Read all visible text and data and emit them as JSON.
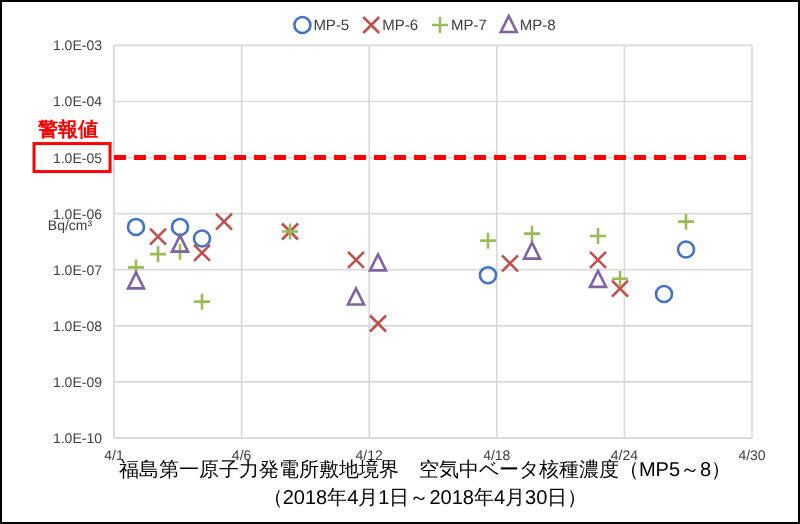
{
  "chart_data": {
    "type": "scatter",
    "title": "福島第一原子力発電所敷地境界　空気中ベータ核種濃度（MP5～8）",
    "subtitle": "（2018年4月1日～2018年4月30日）",
    "ylabel": "Bq/cm³",
    "log": "y",
    "grid": true,
    "legend": "top",
    "xlim": [
      "2018-04-01",
      "2018-04-30"
    ],
    "xticks": [
      {
        "value": "2018-04-01",
        "label": "4/1"
      },
      {
        "value": "2018-04-06T19:12",
        "label": "4/6"
      },
      {
        "value": "2018-04-12T14:24",
        "label": "4/12"
      },
      {
        "value": "2018-04-18T09:36",
        "label": "4/18"
      },
      {
        "value": "2018-04-24T04:48",
        "label": "4/24"
      },
      {
        "value": "2018-04-30",
        "label": "4/30"
      }
    ],
    "ylim": [
      1e-10,
      0.001
    ],
    "yticks": [
      {
        "value": 1e-10,
        "label": "1.0E-10"
      },
      {
        "value": 1e-09,
        "label": "1.0E-09"
      },
      {
        "value": 1e-08,
        "label": "1.0E-08"
      },
      {
        "value": 1e-07,
        "label": "1.0E-07"
      },
      {
        "value": 1e-06,
        "label": "1.0E-06"
      },
      {
        "value": 1e-05,
        "label": "1.0E-05"
      },
      {
        "value": 0.0001,
        "label": "1.0E-04"
      },
      {
        "value": 0.001,
        "label": "1.0E-03"
      }
    ],
    "ref_lines": [
      {
        "axis": "y",
        "value": 1e-05,
        "label": "警報値",
        "color": "#ff0000",
        "line_style": "dashed"
      }
    ],
    "series": [
      {
        "name": "MP-5",
        "color": "#4472c4",
        "marker": "circle",
        "x": [
          "2018-04-02",
          "2018-04-04",
          "2018-04-05",
          "2018-04-18",
          "2018-04-26",
          "2018-04-27"
        ],
        "values": [
          5.8e-07,
          5.8e-07,
          3.6e-07,
          8e-08,
          3.7e-08,
          2.3e-07
        ]
      },
      {
        "name": "MP-6",
        "color": "#c0504d",
        "marker": "cross",
        "x": [
          "2018-04-03",
          "2018-04-05",
          "2018-04-06",
          "2018-04-09",
          "2018-04-12",
          "2018-04-13",
          "2018-04-19",
          "2018-04-23",
          "2018-04-24"
        ],
        "values": [
          3.9e-07,
          2e-07,
          7.2e-07,
          4.8e-07,
          1.5e-07,
          1.1e-08,
          1.3e-07,
          1.5e-07,
          4.6e-08
        ]
      },
      {
        "name": "MP-7",
        "color": "#9bbb59",
        "marker": "plus",
        "x": [
          "2018-04-02",
          "2018-04-03",
          "2018-04-04",
          "2018-04-05",
          "2018-04-09",
          "2018-04-18",
          "2018-04-20",
          "2018-04-23",
          "2018-04-24",
          "2018-04-27"
        ],
        "values": [
          1.1e-07,
          1.9e-07,
          2.1e-07,
          2.7e-08,
          4.8e-07,
          3.3e-07,
          4.4e-07,
          4e-07,
          6.9e-08,
          7.2e-07
        ]
      },
      {
        "name": "MP-8",
        "color": "#8064a2",
        "marker": "triangle",
        "x": [
          "2018-04-02",
          "2018-04-04",
          "2018-04-12",
          "2018-04-13",
          "2018-04-20",
          "2018-04-23"
        ],
        "values": [
          6.2e-08,
          2.8e-07,
          3.2e-08,
          1.3e-07,
          2.1e-07,
          6.6e-08
        ]
      }
    ]
  }
}
